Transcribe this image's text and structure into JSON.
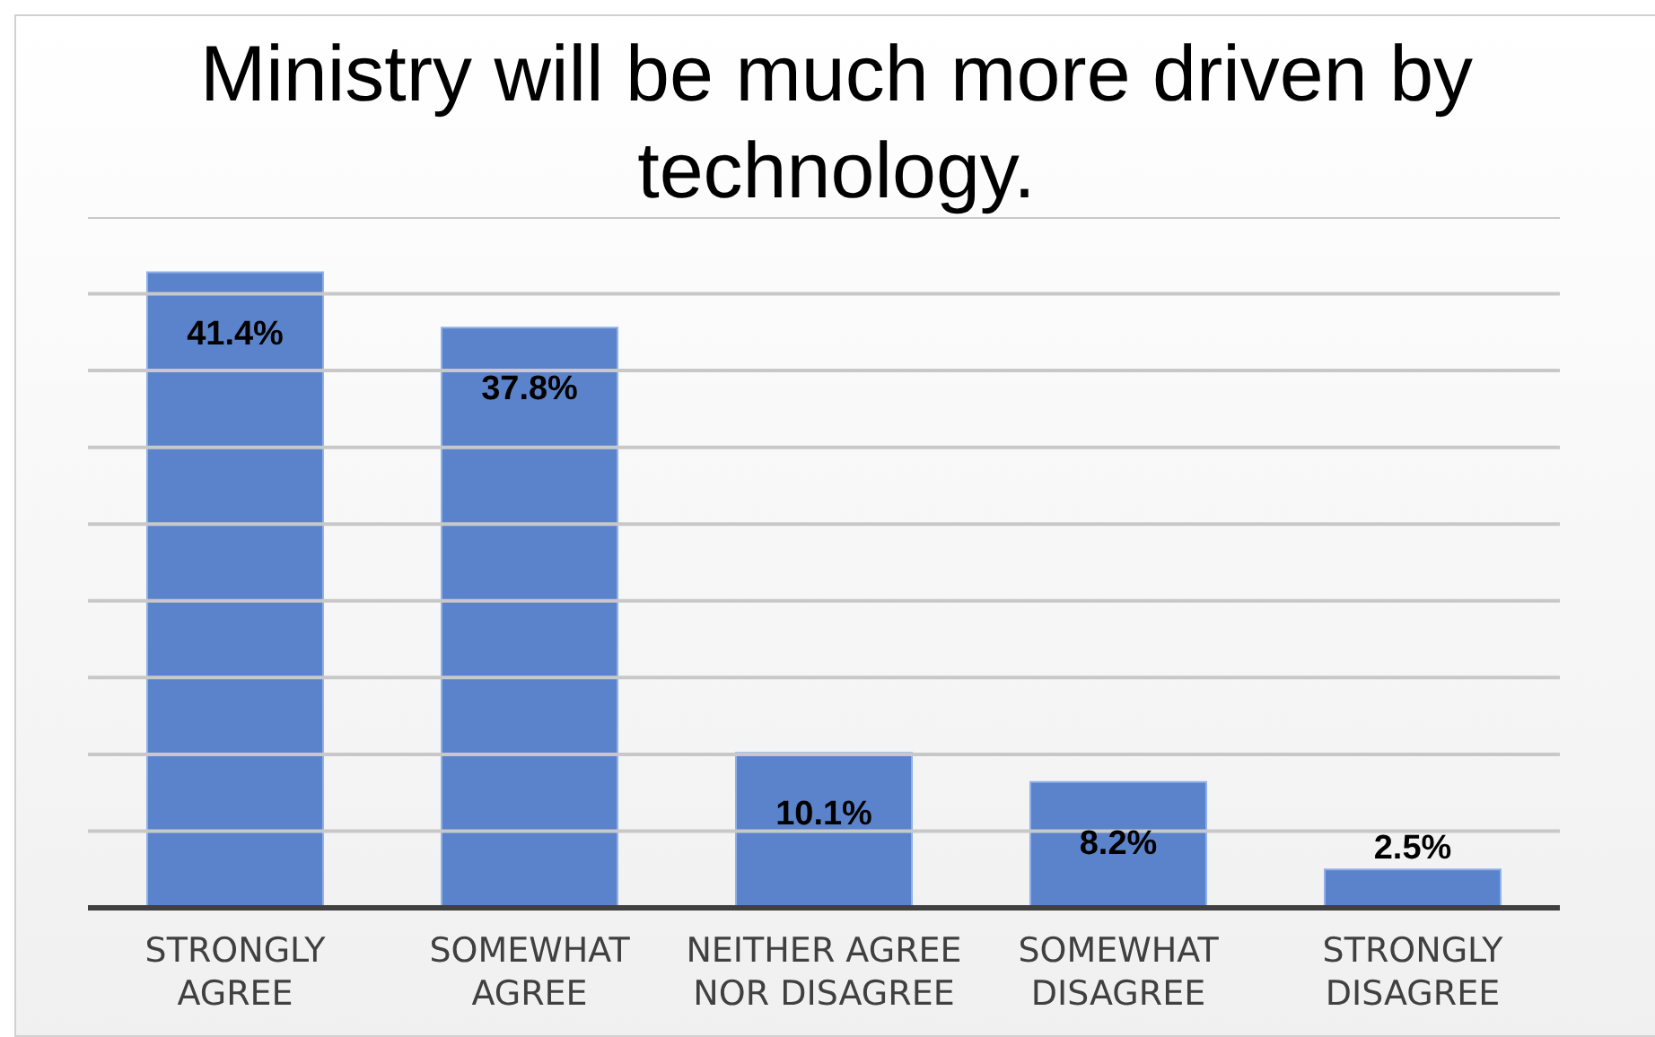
{
  "chart_data": {
    "type": "bar",
    "title": "Ministry will be much more driven by technology.",
    "categories": [
      "STRONGLY AGREE",
      "SOMEWHAT AGREE",
      "NEITHER AGREE NOR DISAGREE",
      "SOMEWHAT DISAGREE",
      "STRONGLY DISAGREE"
    ],
    "values": [
      41.4,
      37.8,
      10.1,
      8.2,
      2.5
    ],
    "value_labels": [
      "41.4%",
      "37.8%",
      "10.1%",
      "8.2%",
      "2.5%"
    ],
    "color": "#5b83cb",
    "ylim": [
      0,
      45
    ],
    "yticks": [
      {
        "value": 0,
        "label": null
      },
      {
        "value": 5,
        "label": null
      },
      {
        "value": 10,
        "label": null
      },
      {
        "value": 15,
        "label": null
      },
      {
        "value": 20,
        "label": null
      },
      {
        "value": 25,
        "label": null
      },
      {
        "value": 30,
        "label": null
      },
      {
        "value": 35,
        "label": null
      },
      {
        "value": 40,
        "label": null
      },
      {
        "value": 45,
        "label": null
      }
    ],
    "grid": "y",
    "tick_labels": "x"
  }
}
